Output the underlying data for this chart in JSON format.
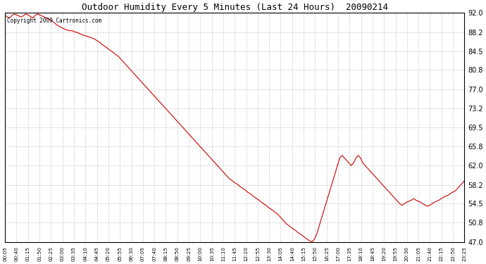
{
  "title": "Outdoor Humidity Every 5 Minutes (Last 24 Hours)  20090214",
  "copyright_text": "Copyright 2009 Cartronics.com",
  "yticks": [
    47.0,
    50.8,
    54.5,
    58.2,
    62.0,
    65.8,
    69.5,
    73.2,
    77.0,
    80.8,
    84.5,
    88.2,
    92.0
  ],
  "ymin": 47.0,
  "ymax": 92.0,
  "line_color": "#cc0000",
  "bg_color": "#ffffff",
  "grid_color": "#aaaaaa",
  "x_labels": [
    "00:05",
    "00:40",
    "01:15",
    "01:50",
    "02:25",
    "03:00",
    "03:35",
    "04:10",
    "04:45",
    "05:20",
    "05:55",
    "06:30",
    "07:05",
    "07:40",
    "08:15",
    "08:50",
    "09:25",
    "10:00",
    "10:35",
    "11:10",
    "11:45",
    "12:20",
    "12:55",
    "13:30",
    "14:05",
    "14:40",
    "15:15",
    "15:50",
    "16:25",
    "17:00",
    "17:35",
    "18:10",
    "18:45",
    "19:20",
    "19:55",
    "20:30",
    "21:05",
    "21:40",
    "22:15",
    "22:50",
    "23:25"
  ],
  "humidity_values": [
    91.5,
    91.2,
    91.0,
    91.5,
    91.8,
    91.6,
    91.4,
    91.2,
    91.5,
    91.8,
    91.6,
    91.3,
    91.0,
    91.5,
    91.8,
    91.6,
    91.4,
    91.2,
    91.0,
    90.8,
    90.5,
    90.2,
    89.8,
    89.5,
    89.2,
    89.0,
    88.8,
    88.6,
    88.5,
    88.5,
    88.3,
    88.2,
    88.0,
    87.8,
    87.6,
    87.5,
    87.3,
    87.2,
    87.0,
    86.8,
    86.5,
    86.2,
    85.8,
    85.5,
    85.2,
    84.8,
    84.5,
    84.2,
    83.8,
    83.5,
    83.0,
    82.5,
    82.0,
    81.5,
    81.0,
    80.5,
    80.0,
    79.5,
    79.0,
    78.5,
    78.0,
    77.5,
    77.0,
    76.5,
    76.0,
    75.5,
    75.0,
    74.5,
    74.0,
    73.5,
    73.0,
    72.5,
    72.0,
    71.5,
    71.0,
    70.5,
    70.0,
    69.5,
    69.0,
    68.5,
    68.0,
    67.5,
    67.0,
    66.5,
    66.0,
    65.5,
    65.0,
    64.5,
    64.0,
    63.5,
    63.0,
    62.5,
    62.0,
    61.5,
    61.0,
    60.5,
    60.0,
    59.5,
    59.2,
    58.8,
    58.5,
    58.2,
    57.8,
    57.5,
    57.2,
    56.8,
    56.5,
    56.2,
    55.8,
    55.5,
    55.2,
    54.8,
    54.5,
    54.2,
    53.8,
    53.5,
    53.2,
    52.8,
    52.5,
    52.0,
    51.5,
    51.0,
    50.5,
    50.2,
    49.8,
    49.5,
    49.2,
    48.8,
    48.5,
    48.2,
    47.8,
    47.5,
    47.2,
    47.0,
    47.5,
    48.5,
    50.0,
    51.5,
    53.0,
    54.5,
    56.0,
    57.5,
    59.0,
    60.5,
    62.0,
    63.5,
    64.0,
    63.5,
    63.0,
    62.5,
    62.0,
    62.5,
    63.5,
    64.0,
    63.5,
    62.5,
    62.0,
    61.5,
    61.0,
    60.5,
    60.0,
    59.5,
    59.0,
    58.5,
    58.0,
    57.5,
    57.0,
    56.5,
    56.0,
    55.5,
    55.0,
    54.5,
    54.2,
    54.5,
    54.8,
    55.0,
    55.2,
    55.5,
    55.2,
    55.0,
    54.8,
    54.5,
    54.2,
    54.0,
    54.2,
    54.5,
    54.8,
    55.0,
    55.2,
    55.5,
    55.8,
    56.0,
    56.2,
    56.5,
    56.8,
    57.0,
    57.5,
    58.0,
    58.5,
    59.0
  ]
}
